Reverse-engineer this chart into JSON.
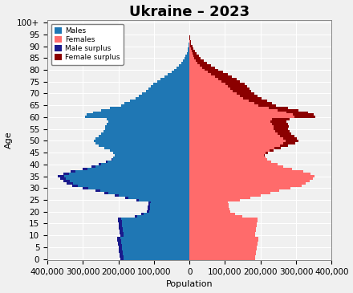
{
  "title": "Ukraine – 2023",
  "xlabel": "Population",
  "ylabel": "Age",
  "ages": [
    0,
    1,
    2,
    3,
    4,
    5,
    6,
    7,
    8,
    9,
    10,
    11,
    12,
    13,
    14,
    15,
    16,
    17,
    18,
    19,
    20,
    21,
    22,
    23,
    24,
    25,
    26,
    27,
    28,
    29,
    30,
    31,
    32,
    33,
    34,
    35,
    36,
    37,
    38,
    39,
    40,
    41,
    42,
    43,
    44,
    45,
    46,
    47,
    48,
    49,
    50,
    51,
    52,
    53,
    54,
    55,
    56,
    57,
    58,
    59,
    60,
    61,
    62,
    63,
    64,
    65,
    66,
    67,
    68,
    69,
    70,
    71,
    72,
    73,
    74,
    75,
    76,
    77,
    78,
    79,
    80,
    81,
    82,
    83,
    84,
    85,
    86,
    87,
    88,
    89,
    90,
    91,
    92,
    93,
    94,
    95,
    96,
    97,
    98,
    99,
    100
  ],
  "males": [
    195000,
    196000,
    197000,
    198000,
    199000,
    200000,
    201000,
    202000,
    203000,
    204000,
    195000,
    196000,
    197000,
    198000,
    199000,
    200000,
    201000,
    202000,
    155000,
    135000,
    120000,
    118000,
    117000,
    116000,
    115000,
    150000,
    180000,
    210000,
    240000,
    265000,
    300000,
    330000,
    345000,
    355000,
    365000,
    370000,
    355000,
    335000,
    300000,
    275000,
    255000,
    235000,
    220000,
    215000,
    210000,
    215000,
    225000,
    240000,
    255000,
    265000,
    270000,
    265000,
    255000,
    248000,
    242000,
    238000,
    237000,
    233000,
    228000,
    233000,
    295000,
    290000,
    272000,
    248000,
    223000,
    193000,
    183000,
    167000,
    152000,
    142000,
    133000,
    122000,
    116000,
    109000,
    101000,
    91000,
    81000,
    71000,
    61000,
    51000,
    43000,
    36000,
    29000,
    23000,
    18000,
    14000,
    10500,
    7800,
    5700,
    4100,
    2900,
    1950,
    1250,
    770,
    460,
    265,
    145,
    72,
    31,
    11,
    5
  ],
  "females": [
    185000,
    186000,
    187000,
    188000,
    189000,
    190000,
    191000,
    192000,
    193000,
    194000,
    185000,
    186000,
    187000,
    188000,
    189000,
    190000,
    191000,
    192000,
    148000,
    128000,
    114000,
    112000,
    111000,
    110000,
    109000,
    143000,
    172000,
    200000,
    228000,
    252000,
    285000,
    315000,
    328000,
    338000,
    348000,
    353000,
    340000,
    320000,
    288000,
    265000,
    248000,
    230000,
    218000,
    215000,
    212000,
    222000,
    237000,
    257000,
    277000,
    298000,
    308000,
    303000,
    295000,
    286000,
    281000,
    278000,
    280000,
    277000,
    273000,
    281000,
    355000,
    350000,
    335000,
    308000,
    278000,
    243000,
    233000,
    218000,
    203000,
    192000,
    183000,
    173000,
    169000,
    162000,
    155000,
    142000,
    132000,
    120000,
    108000,
    94000,
    82000,
    71000,
    60000,
    49000,
    40000,
    32000,
    26000,
    20000,
    14500,
    10500,
    7600,
    5200,
    3300,
    2000,
    1150,
    635,
    325,
    155,
    60,
    20,
    9
  ],
  "color_male": "#1f77b4",
  "color_female": "#ff6b6b",
  "color_male_surplus": "#1a1a8c",
  "color_female_surplus": "#8b0000",
  "bg_color": "#f0f0f0",
  "grid_color": "#ffffff",
  "title_fontsize": 13,
  "label_fontsize": 8,
  "tick_fontsize": 7.5,
  "xlim": 400000,
  "ylim_max": 101
}
